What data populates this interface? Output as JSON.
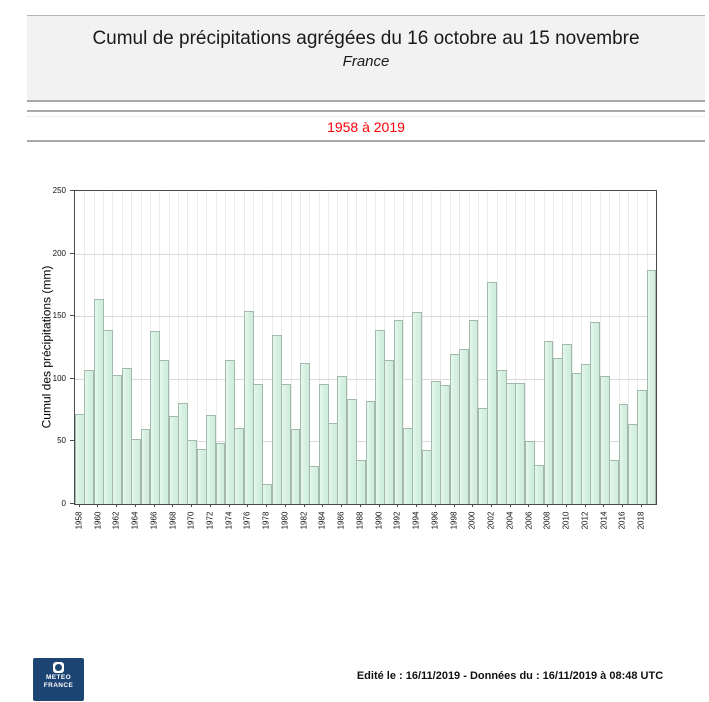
{
  "header": {
    "title": "Cumul de précipitations agrégées du 16 octobre au 15 novembre",
    "region": "France"
  },
  "period": "1958 à 2019",
  "chart_data": {
    "type": "bar",
    "title": "Cumul de précipitations agrégées du 16 octobre au 15 novembre — France",
    "xlabel": "",
    "ylabel": "Cumul des précipitations (mm)",
    "ylim": [
      0,
      250
    ],
    "yticks": [
      0,
      50,
      100,
      150,
      200,
      250
    ],
    "grid": "on",
    "legend": "none",
    "categories": [
      1958,
      1959,
      1960,
      1961,
      1962,
      1963,
      1964,
      1965,
      1966,
      1967,
      1968,
      1969,
      1970,
      1971,
      1972,
      1973,
      1974,
      1975,
      1976,
      1977,
      1978,
      1979,
      1980,
      1981,
      1982,
      1983,
      1984,
      1985,
      1986,
      1987,
      1988,
      1989,
      1990,
      1991,
      1992,
      1993,
      1994,
      1995,
      1996,
      1997,
      1998,
      1999,
      2000,
      2001,
      2002,
      2003,
      2004,
      2005,
      2006,
      2007,
      2008,
      2009,
      2010,
      2011,
      2012,
      2013,
      2014,
      2015,
      2016,
      2017,
      2018,
      2019
    ],
    "values": [
      72,
      107,
      164,
      139,
      103,
      109,
      52,
      60,
      138,
      115,
      70,
      81,
      51,
      44,
      71,
      49,
      115,
      61,
      154,
      96,
      16,
      135,
      96,
      60,
      113,
      30,
      96,
      65,
      102,
      84,
      35,
      82,
      139,
      115,
      147,
      61,
      153,
      43,
      98,
      95,
      120,
      124,
      147,
      77,
      177,
      107,
      97,
      97,
      50,
      31,
      130,
      117,
      128,
      105,
      112,
      145,
      102,
      35,
      80,
      64,
      91,
      187
    ],
    "xtick_labels": [
      1958,
      1960,
      1962,
      1964,
      1966,
      1968,
      1970,
      1972,
      1974,
      1976,
      1978,
      1980,
      1982,
      1984,
      1986,
      1988,
      1990,
      1992,
      1994,
      1996,
      1998,
      2000,
      2002,
      2004,
      2006,
      2008,
      2010,
      2012,
      2014,
      2016,
      2018
    ],
    "colors": {
      "bar_fill": "#d6f1e2",
      "bar_border": "#a2b9ac",
      "grid_h": "#d9d9d9",
      "grid_v": "#ececec",
      "axis": "#4a4a4a",
      "period_text": "#fb0006"
    }
  },
  "footer": {
    "edited": "Edité le : 16/11/2019 - Données du : 16/11/2019 à 08:48 UTC",
    "logo_line1": "METEO",
    "logo_line2": "FRANCE"
  }
}
